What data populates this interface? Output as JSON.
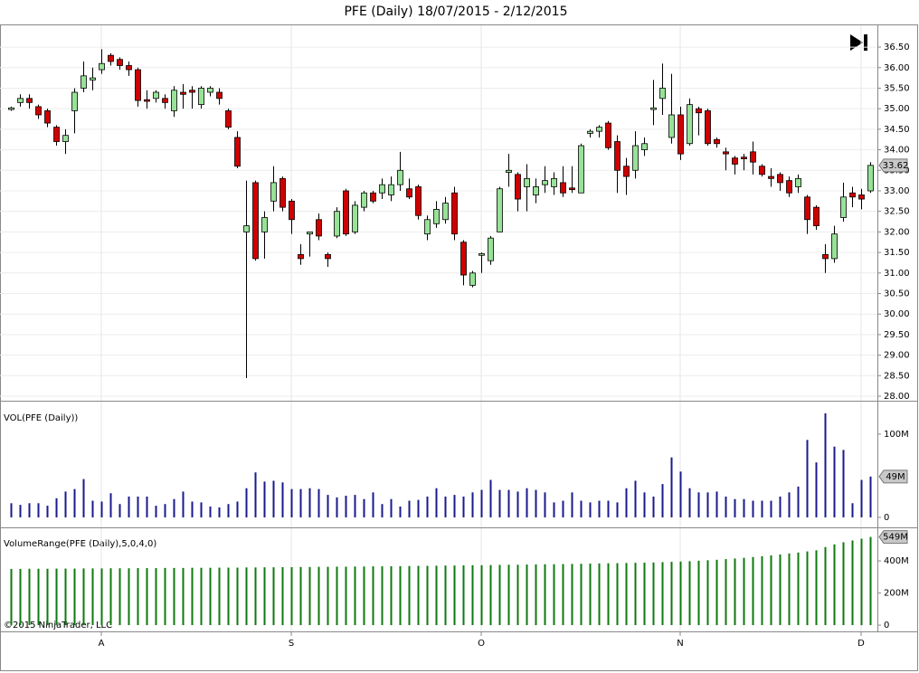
{
  "chart_data": [
    {
      "type": "candlestick",
      "title": "PFE (Daily)  18/07/2015 - 2/12/2015",
      "up_color": "#98e298",
      "down_color": "#d00000",
      "wick_color": "#000000",
      "ylim": [
        27.89,
        37.03
      ],
      "yticks": [
        {
          "value": 28,
          "label": "28.00"
        },
        {
          "value": 28.5,
          "label": "28.50"
        },
        {
          "value": 29,
          "label": "29.00"
        },
        {
          "value": 29.5,
          "label": "29.50"
        },
        {
          "value": 30,
          "label": "30.00"
        },
        {
          "value": 30.5,
          "label": "30.50"
        },
        {
          "value": 31,
          "label": "31.00"
        },
        {
          "value": 31.5,
          "label": "31.50"
        },
        {
          "value": 32,
          "label": "32.00"
        },
        {
          "value": 32.5,
          "label": "32.50"
        },
        {
          "value": 33,
          "label": "33.00"
        },
        {
          "value": 33.5,
          "label": "33.50"
        },
        {
          "value": 34,
          "label": "34.00"
        },
        {
          "value": 34.5,
          "label": "34.50"
        },
        {
          "value": 35,
          "label": "35.00"
        },
        {
          "value": 35.5,
          "label": "35.50"
        },
        {
          "value": 36,
          "label": "36.00"
        },
        {
          "value": 36.5,
          "label": "36.50"
        }
      ],
      "grid": true,
      "last_value_label": "33.62",
      "open": [
        34.98,
        35.15,
        35.25,
        35.05,
        34.95,
        34.55,
        34.2,
        34.95,
        35.5,
        35.7,
        35.95,
        36.3,
        36.2,
        36.05,
        35.95,
        35.22,
        35.25,
        35.25,
        34.95,
        35.4,
        35.45,
        35.1,
        35.4,
        35.4,
        34.95,
        34.3,
        32.0,
        33.2,
        32.0,
        32.75,
        33.3,
        32.75,
        31.45,
        31.95,
        32.3,
        31.45,
        31.9,
        33.0,
        32.0,
        32.6,
        32.95,
        32.95,
        32.9,
        33.15,
        33.05,
        33.1,
        31.95,
        32.2,
        32.3,
        32.95,
        31.75,
        30.7,
        31.43,
        31.3,
        32.0,
        33.45,
        33.4,
        33.1,
        32.9,
        33.15,
        33.1,
        33.2,
        33.07,
        32.95,
        34.4,
        34.45,
        34.65,
        34.2,
        33.6,
        33.5,
        34.0,
        34.98,
        35.25,
        34.3,
        34.85,
        34.15,
        35.0,
        34.95,
        34.25,
        33.95,
        33.8,
        33.82,
        33.95,
        33.6,
        33.35,
        33.4,
        33.25,
        33.1,
        32.85,
        32.6,
        31.45,
        31.35,
        32.35,
        32.95,
        32.9,
        33.0
      ],
      "high": [
        35.05,
        35.35,
        35.35,
        35.1,
        35.0,
        34.6,
        34.5,
        35.5,
        36.15,
        36.0,
        36.45,
        36.35,
        36.25,
        36.15,
        36.0,
        35.45,
        35.45,
        35.35,
        35.55,
        35.6,
        35.55,
        35.55,
        35.55,
        35.5,
        35.0,
        34.45,
        33.25,
        33.25,
        32.5,
        33.6,
        33.35,
        32.8,
        31.7,
        32.0,
        32.45,
        31.5,
        32.6,
        33.05,
        32.75,
        33.0,
        33.0,
        33.3,
        33.35,
        33.95,
        33.3,
        33.15,
        32.4,
        32.75,
        32.85,
        33.1,
        31.8,
        31.05,
        31.5,
        31.9,
        33.1,
        33.9,
        33.45,
        33.65,
        33.3,
        33.6,
        33.45,
        33.6,
        33.6,
        34.15,
        34.5,
        34.6,
        34.7,
        34.35,
        33.8,
        34.45,
        34.3,
        35.7,
        36.1,
        35.85,
        35.05,
        35.25,
        35.05,
        35.0,
        34.3,
        34.05,
        33.85,
        33.9,
        34.2,
        33.65,
        33.55,
        33.45,
        33.35,
        33.4,
        32.9,
        32.65,
        31.7,
        32.15,
        33.2,
        33.1,
        33.05,
        33.7
      ],
      "low": [
        34.95,
        35.05,
        35.0,
        34.75,
        34.55,
        34.1,
        33.9,
        34.4,
        35.4,
        35.45,
        35.85,
        36.05,
        35.95,
        35.8,
        35.05,
        35.0,
        35.15,
        35.0,
        34.8,
        35.0,
        35.0,
        35.0,
        35.3,
        35.1,
        34.5,
        33.55,
        28.44,
        31.3,
        31.35,
        32.5,
        32.5,
        31.95,
        31.2,
        31.4,
        31.8,
        31.15,
        31.85,
        31.9,
        31.95,
        32.5,
        32.7,
        32.8,
        32.75,
        33.0,
        32.8,
        32.3,
        31.8,
        32.1,
        32.2,
        31.8,
        30.7,
        30.65,
        31.0,
        31.2,
        32.0,
        33.1,
        32.5,
        32.5,
        32.7,
        32.95,
        32.9,
        32.85,
        32.95,
        32.95,
        34.3,
        34.3,
        34.0,
        32.95,
        32.9,
        33.3,
        33.85,
        34.6,
        34.85,
        34.15,
        33.75,
        34.1,
        34.35,
        34.1,
        34.05,
        33.5,
        33.4,
        33.5,
        33.4,
        33.35,
        33.1,
        33.0,
        32.85,
        32.95,
        31.95,
        32.05,
        31.0,
        31.25,
        32.25,
        32.6,
        32.55,
        32.95
      ],
      "close": [
        35.02,
        35.25,
        35.15,
        34.85,
        34.65,
        34.2,
        34.35,
        35.4,
        35.8,
        35.75,
        36.1,
        36.15,
        36.05,
        35.95,
        35.2,
        35.18,
        35.4,
        35.15,
        35.45,
        35.35,
        35.4,
        35.5,
        35.5,
        35.25,
        34.55,
        33.6,
        32.15,
        31.35,
        32.35,
        33.2,
        32.6,
        32.3,
        31.35,
        32.0,
        31.9,
        31.35,
        32.5,
        31.95,
        32.65,
        32.95,
        32.75,
        33.15,
        33.15,
        33.5,
        32.85,
        32.4,
        32.3,
        32.55,
        32.7,
        31.95,
        30.95,
        31.0,
        31.47,
        31.85,
        33.05,
        33.5,
        32.8,
        33.3,
        33.1,
        33.25,
        33.3,
        32.95,
        33.03,
        34.1,
        34.45,
        34.55,
        34.05,
        33.5,
        33.35,
        34.1,
        34.15,
        35.02,
        35.5,
        34.85,
        33.9,
        35.1,
        34.9,
        34.15,
        34.15,
        33.9,
        33.65,
        33.78,
        33.7,
        33.4,
        33.3,
        33.2,
        32.95,
        33.3,
        32.3,
        32.15,
        31.35,
        31.95,
        32.85,
        32.85,
        32.8,
        33.62
      ]
    },
    {
      "type": "bar",
      "label": "VOL(PFE (Daily))",
      "color": "#1a1a8c",
      "ylim": [
        -12000000.0,
        139000000.0
      ],
      "yticks": [
        0,
        {
          "value": 100000000.0,
          "label": "100M"
        }
      ],
      "last_value_label": "49M",
      "values": [
        17000000.0,
        15000000.0,
        17000000.0,
        17000000.0,
        14000000.0,
        23000000.0,
        31000000.0,
        34000000.0,
        46000000.0,
        20000000.0,
        19000000.0,
        29000000.0,
        16000000.0,
        25000000.0,
        25000000.0,
        25000000.0,
        14000000.0,
        16000000.0,
        22000000.0,
        31000000.0,
        19000000.0,
        18000000.0,
        13000000.0,
        12000000.0,
        16000000.0,
        19000000.0,
        35000000.0,
        54000000.0,
        43000000.0,
        44000000.0,
        42000000.0,
        34000000.0,
        34000000.0,
        35000000.0,
        34000000.0,
        27000000.0,
        24000000.0,
        26000000.0,
        27000000.0,
        22000000.0,
        30000000.0,
        16000000.0,
        22000000.0,
        13000000.0,
        20000000.0,
        21000000.0,
        25000000.0,
        35000000.0,
        25000000.0,
        27000000.0,
        25000000.0,
        30000000.0,
        33000000.0,
        45000000.0,
        33000000.0,
        33000000.0,
        31000000.0,
        35000000.0,
        33000000.0,
        30000000.0,
        18000000.0,
        20000000.0,
        30000000.0,
        20000000.0,
        18000000.0,
        20000000.0,
        20000000.0,
        18000000.0,
        35000000.0,
        44000000.0,
        30000000.0,
        25000000.0,
        40000000.0,
        72000000.0,
        55000000.0,
        35000000.0,
        30000000.0,
        30000000.0,
        31000000.0,
        25000000.0,
        22000000.0,
        22000000.0,
        20000000.0,
        20000000.0,
        20000000.0,
        25000000.0,
        30000000.0,
        37000000.0,
        93000000.0,
        66000000.0,
        125000000.0,
        85000000.0,
        81000000.0,
        17000000.0,
        45000000.0,
        49000000.0
      ]
    },
    {
      "type": "bar",
      "label": "VolumeRange(PFE (Daily),5,0,4,0)",
      "color": "#0e7a0e",
      "ylim": [
        -39000000.0,
        603000000.0
      ],
      "yticks": [
        0,
        {
          "value": 200000000.0,
          "label": "200M"
        },
        {
          "value": 400000000.0,
          "label": "400M"
        }
      ],
      "last_value_label": "549M",
      "footnote": "©2015 NinjaTrader, LLC",
      "values": [
        350000000.0,
        350000000.0,
        351000000.0,
        351000000.0,
        351000000.0,
        352000000.0,
        352000000.0,
        352000000.0,
        353000000.0,
        353000000.0,
        353000000.0,
        354000000.0,
        354000000.0,
        354000000.0,
        355000000.0,
        355000000.0,
        355000000.0,
        356000000.0,
        356000000.0,
        356000000.0,
        357000000.0,
        357000000.0,
        357000000.0,
        358000000.0,
        358000000.0,
        358000000.0,
        359000000.0,
        359000000.0,
        360000000.0,
        360000000.0,
        361000000.0,
        361000000.0,
        362000000.0,
        362000000.0,
        363000000.0,
        363000000.0,
        364000000.0,
        364000000.0,
        365000000.0,
        365000000.0,
        366000000.0,
        366000000.0,
        367000000.0,
        367000000.0,
        368000000.0,
        369000000.0,
        369000000.0,
        370000000.0,
        371000000.0,
        371000000.0,
        372000000.0,
        373000000.0,
        373000000.0,
        374000000.0,
        375000000.0,
        376000000.0,
        376000000.0,
        377000000.0,
        378000000.0,
        379000000.0,
        379000000.0,
        380000000.0,
        381000000.0,
        382000000.0,
        383000000.0,
        384000000.0,
        385000000.0,
        386000000.0,
        387000000.0,
        388000000.0,
        389000000.0,
        390000000.0,
        392000000.0,
        394000000.0,
        396000000.0,
        398000000.0,
        401000000.0,
        404000000.0,
        407000000.0,
        411000000.0,
        415000000.0,
        419000000.0,
        424000000.0,
        429000000.0,
        434000000.0,
        440000000.0,
        446000000.0,
        452000000.0,
        459000000.0,
        466000000.0,
        486000000.0,
        503000000.0,
        516000000.0,
        527000000.0,
        538000000.0,
        549000000.0
      ],
      "categories": [
        null,
        null,
        null,
        null,
        null,
        null,
        null,
        null,
        null,
        null,
        "A",
        null,
        null,
        null,
        null,
        null,
        null,
        null,
        null,
        null,
        null,
        null,
        null,
        null,
        null,
        null,
        null,
        null,
        null,
        null,
        null,
        "S",
        null,
        null,
        null,
        null,
        null,
        null,
        null,
        null,
        null,
        null,
        null,
        null,
        null,
        null,
        null,
        null,
        null,
        null,
        null,
        null,
        "O",
        null,
        null,
        null,
        null,
        null,
        null,
        null,
        null,
        null,
        null,
        null,
        null,
        null,
        null,
        null,
        null,
        null,
        null,
        null,
        null,
        null,
        "N",
        null,
        null,
        null,
        null,
        null,
        null,
        null,
        null,
        null,
        null,
        null,
        null,
        null,
        null,
        null,
        null,
        null,
        null,
        null,
        "D",
        null
      ]
    }
  ]
}
